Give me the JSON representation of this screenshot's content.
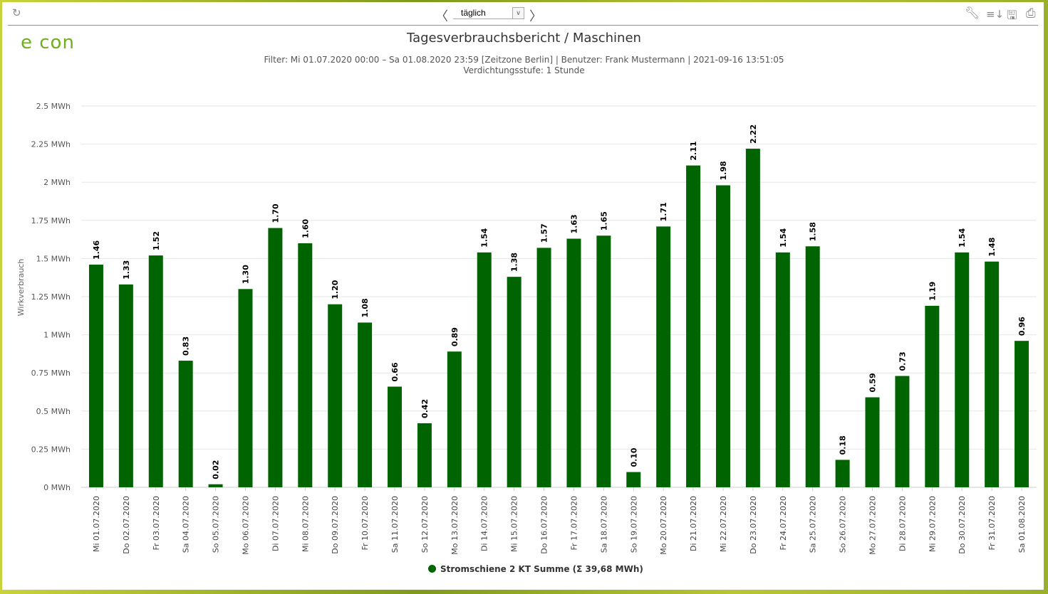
{
  "toolbar": {
    "period_value": "täglich",
    "icons": [
      "refresh-icon",
      "chevron-left-icon",
      "chevron-right-icon",
      "wrench-icon",
      "sort-icon",
      "save-icon",
      "print-icon"
    ]
  },
  "logo": "econ",
  "header": {
    "title": "Tagesverbrauchsbericht / Maschinen",
    "filter": "Filter: Mi 01.07.2020 00:00 – Sa 01.08.2020 23:59 [Zeitzone Berlin] | Benutzer: Frank Mustermann | 2021-09-16 13:51:05",
    "aggregation": "Verdichtungsstufe: 1 Stunde"
  },
  "chart_data": {
    "type": "bar",
    "ylabel": "Wirkverbrauch",
    "ylim": [
      0,
      2.5
    ],
    "yticks": [
      "0 MWh",
      "0.25 MWh",
      "0.5 MWh",
      "0.75 MWh",
      "1 MWh",
      "1.25 MWh",
      "1.5 MWh",
      "1.75 MWh",
      "2 MWh",
      "2.25 MWh",
      "2.5 MWh"
    ],
    "grid": true,
    "legend_position": "bottom",
    "color": "#006400",
    "categories": [
      "Mi 01.07.2020",
      "Do 02.07.2020",
      "Fr 03.07.2020",
      "Sa 04.07.2020",
      "So 05.07.2020",
      "Mo 06.07.2020",
      "Di 07.07.2020",
      "Mi 08.07.2020",
      "Do 09.07.2020",
      "Fr 10.07.2020",
      "Sa 11.07.2020",
      "So 12.07.2020",
      "Mo 13.07.2020",
      "Di 14.07.2020",
      "Mi 15.07.2020",
      "Do 16.07.2020",
      "Fr 17.07.2020",
      "Sa 18.07.2020",
      "So 19.07.2020",
      "Mo 20.07.2020",
      "Di 21.07.2020",
      "Mi 22.07.2020",
      "Do 23.07.2020",
      "Fr 24.07.2020",
      "Sa 25.07.2020",
      "So 26.07.2020",
      "Mo 27.07.2020",
      "Di 28.07.2020",
      "Mi 29.07.2020",
      "Do 30.07.2020",
      "Fr 31.07.2020",
      "Sa 01.08.2020"
    ],
    "series": [
      {
        "name": "Stromschiene 2 KT Summe (Σ 39,68 MWh)",
        "values": [
          1.46,
          1.33,
          1.52,
          0.83,
          0.02,
          1.3,
          1.7,
          1.6,
          1.2,
          1.08,
          0.66,
          0.42,
          0.89,
          1.54,
          1.38,
          1.57,
          1.63,
          1.65,
          0.1,
          1.71,
          2.11,
          1.98,
          2.22,
          1.54,
          1.58,
          0.18,
          0.59,
          0.73,
          1.19,
          1.54,
          1.48,
          0.96
        ]
      }
    ]
  }
}
